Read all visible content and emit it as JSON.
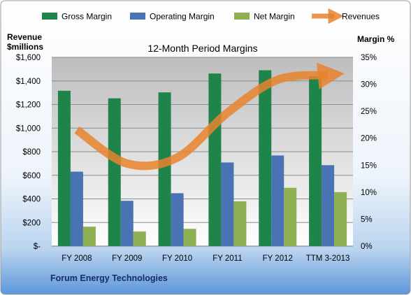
{
  "chart_data": {
    "type": "bar",
    "title": "12-Month Period Margins",
    "company": "Forum Energy Technologies",
    "categories": [
      "FY 2008",
      "FY 2009",
      "FY 2010",
      "FY 2011",
      "FY 2012",
      "TTM 3-2013"
    ],
    "left_axis": {
      "label_line1": "Revenue",
      "label_line2": "$millions",
      "ylim": [
        0,
        1600
      ],
      "ticks": [
        "$-",
        "$200",
        "$400",
        "$600",
        "$800",
        "$1,000",
        "$1,200",
        "$1,400",
        "$1,600"
      ]
    },
    "right_axis": {
      "label": "Margin %",
      "ylim": [
        0,
        35
      ],
      "ticks": [
        "0%",
        "5%",
        "10%",
        "15%",
        "20%",
        "25%",
        "30%",
        "35%"
      ]
    },
    "series": [
      {
        "name": "Gross Margin",
        "type": "bar",
        "axis": "right",
        "color": "#1e8449",
        "values": [
          28.8,
          27.4,
          28.5,
          32.0,
          32.6,
          31.5
        ]
      },
      {
        "name": "Operating Margin",
        "type": "bar",
        "axis": "right",
        "color": "#4a73b3",
        "values": [
          13.8,
          8.4,
          9.8,
          15.5,
          16.8,
          15.0
        ]
      },
      {
        "name": "Net Margin",
        "type": "bar",
        "axis": "right",
        "color": "#8eb052",
        "values": [
          3.6,
          2.7,
          3.2,
          8.3,
          10.8,
          10.0
        ]
      },
      {
        "name": "Revenues",
        "type": "line",
        "axis": "left",
        "color": "#e8822e",
        "values": [
          985,
          700,
          750,
          1130,
          1410,
          1450
        ]
      }
    ],
    "legend_position": "top",
    "grid": true
  }
}
